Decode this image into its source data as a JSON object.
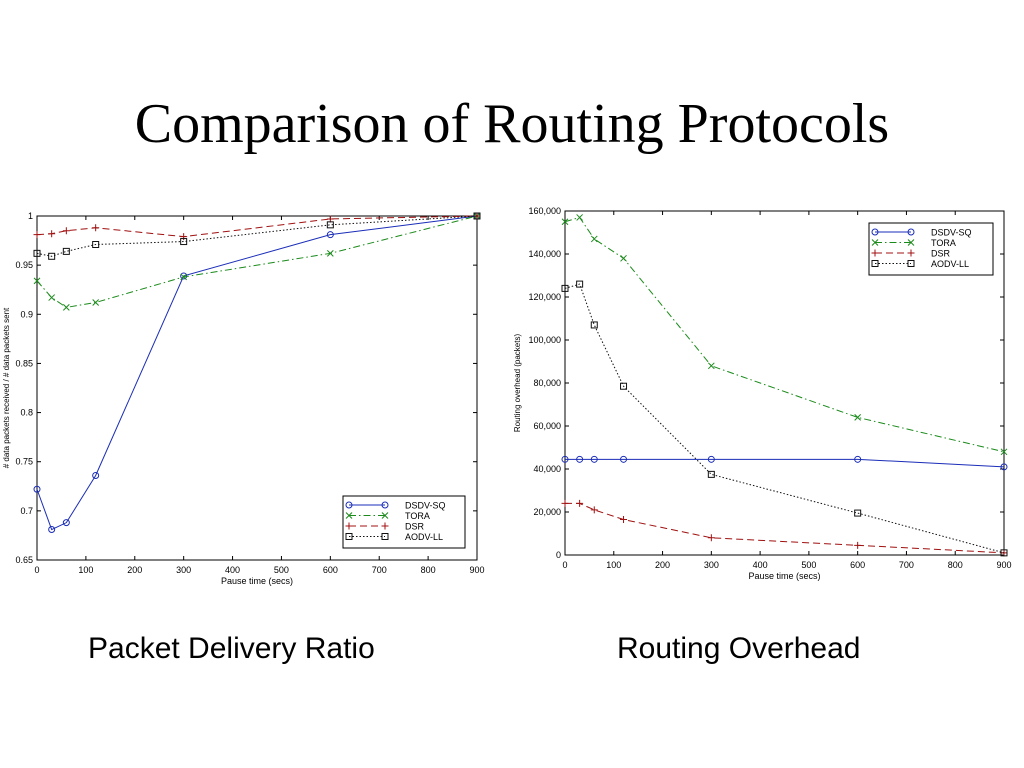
{
  "slide": {
    "title": "Comparison of Routing Protocols",
    "captions": [
      "Packet Delivery Ratio",
      "Routing Overhead"
    ]
  },
  "chart_data": [
    {
      "type": "line",
      "xlabel": "Pause time (secs)",
      "ylabel": "# data packets received / # data packets sent",
      "xlim": [
        0,
        900
      ],
      "ylim": [
        0.65,
        1
      ],
      "xticks": [
        0,
        100,
        200,
        300,
        400,
        500,
        600,
        700,
        800,
        900
      ],
      "yticks": [
        0.65,
        0.7,
        0.75,
        0.8,
        0.85,
        0.9,
        0.95,
        1
      ],
      "ytick_labels": [
        "0.65",
        "0.7",
        "0.75",
        "0.8",
        "0.85",
        "0.9",
        "0.95",
        "1"
      ],
      "grid": false,
      "legend_position": "bottom-right",
      "x": [
        0,
        30,
        60,
        120,
        300,
        600,
        900
      ],
      "series": [
        {
          "name": "DSDV-SQ",
          "color": "#1a2db8",
          "dash": "solid",
          "marker": "circle",
          "values": [
            0.722,
            0.681,
            0.688,
            0.736,
            0.939,
            0.981,
            1.0
          ]
        },
        {
          "name": "TORA",
          "color": "#1a8a1a",
          "dash": "dashdot",
          "marker": "x",
          "values": [
            0.934,
            0.917,
            0.907,
            0.912,
            0.938,
            0.962,
            1.0
          ]
        },
        {
          "name": "DSR",
          "color": "#a01010",
          "dash": "dashed",
          "marker": "plus",
          "values": [
            0.981,
            0.982,
            0.985,
            0.988,
            0.979,
            0.997,
            1.0
          ]
        },
        {
          "name": "AODV-LL",
          "color": "#111111",
          "dash": "dotted",
          "marker": "square",
          "values": [
            0.962,
            0.959,
            0.964,
            0.971,
            0.974,
            0.991,
            1.0
          ]
        }
      ]
    },
    {
      "type": "line",
      "xlabel": "Pause time (secs)",
      "ylabel": "Routing overhead (packets)",
      "xlim": [
        0,
        900
      ],
      "ylim": [
        0,
        160000
      ],
      "xticks": [
        0,
        100,
        200,
        300,
        400,
        500,
        600,
        700,
        800,
        900
      ],
      "yticks": [
        0,
        20000,
        40000,
        60000,
        80000,
        100000,
        120000,
        140000,
        160000
      ],
      "ytick_labels": [
        "0",
        "20,000",
        "40,000",
        "60,000",
        "80,000",
        "100,000",
        "120,000",
        "140,000",
        "160,000"
      ],
      "grid": false,
      "legend_position": "top-right",
      "x": [
        0,
        30,
        60,
        120,
        300,
        600,
        900
      ],
      "series": [
        {
          "name": "DSDV-SQ",
          "color": "#1a2db8",
          "dash": "solid",
          "marker": "circle",
          "values": [
            44500,
            44500,
            44500,
            44500,
            44500,
            44500,
            41000
          ]
        },
        {
          "name": "TORA",
          "color": "#1a8a1a",
          "dash": "dashdot",
          "marker": "x",
          "values": [
            155000,
            157000,
            147000,
            138000,
            88000,
            64000,
            48000
          ]
        },
        {
          "name": "DSR",
          "color": "#a01010",
          "dash": "dashed",
          "marker": "plus",
          "values": [
            24000,
            24000,
            21000,
            16500,
            8000,
            4500,
            1000
          ]
        },
        {
          "name": "AODV-LL",
          "color": "#111111",
          "dash": "dotted",
          "marker": "square",
          "values": [
            124000,
            126000,
            107000,
            78500,
            37500,
            19500,
            1000
          ]
        }
      ]
    }
  ]
}
